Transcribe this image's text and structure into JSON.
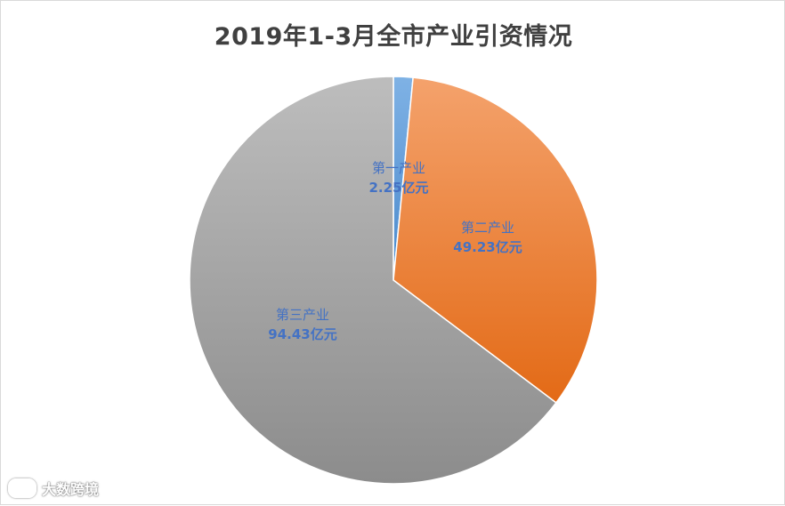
{
  "chart_data": {
    "type": "pie",
    "title": "2019年1-3月全市产业引资情况",
    "unit": "亿元",
    "slices": [
      {
        "name": "第一产业",
        "value": 2.25,
        "label": "2.25亿元",
        "color": "#5b9bd5"
      },
      {
        "name": "第二产业",
        "value": 49.23,
        "label": "49.23亿元",
        "color": "#ed7d31"
      },
      {
        "name": "第三产业",
        "value": 94.43,
        "label": "94.43亿元",
        "color": "#a5a5a5"
      }
    ],
    "legend": "none"
  },
  "watermark": {
    "logo_icon": "ic-logo-icon",
    "text": "大数跨境"
  }
}
